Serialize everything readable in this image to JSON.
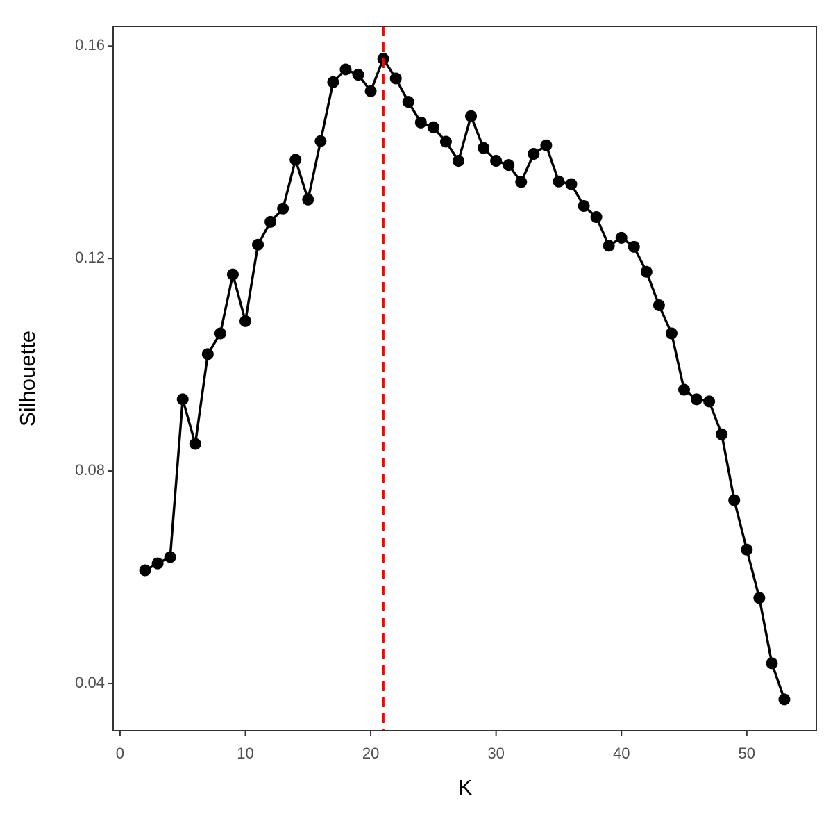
{
  "chart_data": {
    "type": "line",
    "x_label": "K",
    "y_label": "Silhouette",
    "x": [
      2,
      3,
      4,
      5,
      6,
      7,
      8,
      9,
      10,
      11,
      12,
      13,
      14,
      15,
      16,
      17,
      18,
      19,
      20,
      21,
      22,
      23,
      24,
      25,
      26,
      27,
      28,
      29,
      30,
      31,
      32,
      33,
      34,
      35,
      36,
      37,
      38,
      39,
      40,
      41,
      42,
      43,
      44,
      45,
      46,
      47,
      48,
      49,
      50,
      51,
      52,
      53
    ],
    "series": [
      {
        "color": "#000000",
        "values": [
          0.0613,
          0.0626,
          0.0638,
          0.0935,
          0.0851,
          0.102,
          0.1059,
          0.117,
          0.1082,
          0.1226,
          0.1269,
          0.1294,
          0.1386,
          0.1311,
          0.1421,
          0.1532,
          0.1556,
          0.1546,
          0.1515,
          0.1576,
          0.1539,
          0.1495,
          0.1456,
          0.1447,
          0.142,
          0.1384,
          0.1468,
          0.1408,
          0.1384,
          0.1376,
          0.1344,
          0.1397,
          0.1413,
          0.1345,
          0.134,
          0.1299,
          0.1278,
          0.1224,
          0.1239,
          0.1222,
          0.1175,
          0.1112,
          0.1059,
          0.0953,
          0.0935,
          0.0931,
          0.0869,
          0.0745,
          0.0652,
          0.0561,
          0.0438,
          0.037
        ]
      }
    ],
    "vline": {
      "x": 21,
      "color": "#ff0000"
    },
    "xlim": [
      -0.55,
      55.55
    ],
    "xticks": [
      0,
      10,
      20,
      30,
      40,
      50
    ],
    "ylim": [
      0.0311,
      0.1637
    ],
    "yticks": [
      0.04,
      0.08,
      0.12,
      0.16
    ]
  }
}
